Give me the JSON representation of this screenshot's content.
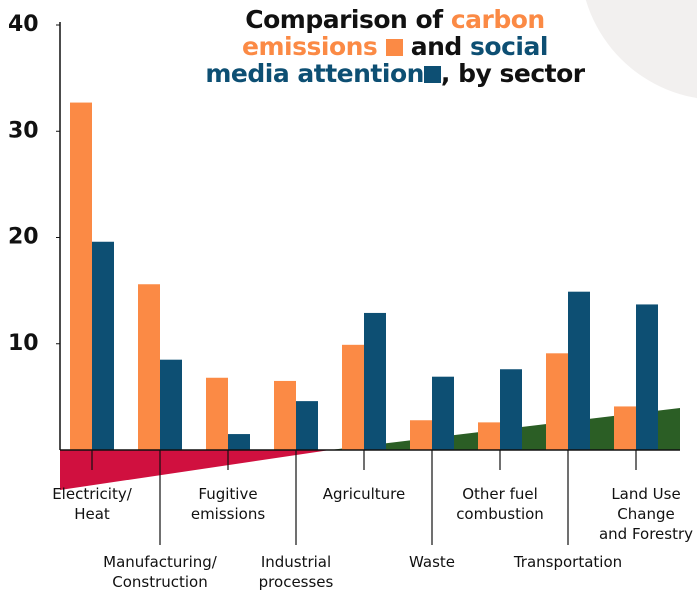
{
  "chart_data": {
    "type": "bar",
    "title_parts": [
      "Comparison of",
      "and",
      ", by sector"
    ],
    "categories": [
      "Electricity/\nHeat",
      "Manufacturing/\nConstruction",
      "Fugitive\nemissions",
      "Industrial\nprocesses",
      "Agriculture",
      "Waste",
      "Other fuel\ncombustion",
      "Transportation",
      "Land Use\nChange\nand Forestry"
    ],
    "series": [
      {
        "name": "carbon emissions",
        "color": "#fb8a45",
        "values": [
          32.7,
          15.6,
          6.8,
          6.5,
          9.9,
          2.8,
          2.6,
          9.1,
          4.1
        ]
      },
      {
        "name": "social media attention",
        "color": "#0d4f73",
        "values": [
          19.6,
          8.5,
          1.5,
          4.6,
          12.9,
          6.9,
          7.6,
          14.9,
          13.7
        ]
      }
    ],
    "ylim": [
      0,
      40
    ],
    "yticks": [
      10,
      20,
      30,
      40
    ]
  }
}
